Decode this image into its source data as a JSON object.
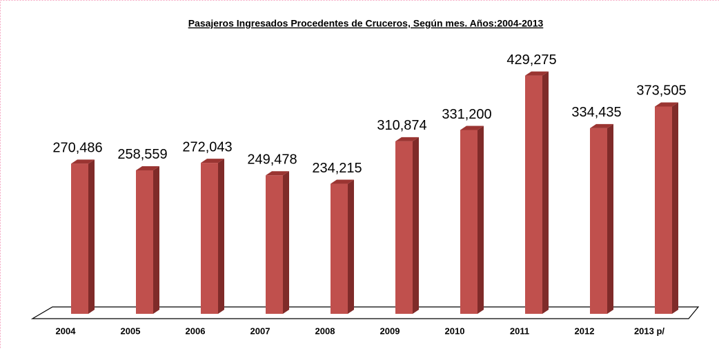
{
  "chart_data": {
    "type": "bar3d",
    "title": "Pasajeros Ingresados Procedentes de Cruceros, Según mes. Años:2004-2013",
    "categories": [
      "2004",
      "2005",
      "2006",
      "2007",
      "2008",
      "2009",
      "2010",
      "2011",
      "2012",
      "2013 p/"
    ],
    "values": [
      270486,
      258559,
      272043,
      249478,
      234215,
      310874,
      331200,
      429275,
      334435,
      373505
    ],
    "value_labels": [
      "270,486",
      "258,559",
      "272,043",
      "249,478",
      "234,215",
      "310,874",
      "331,200",
      "429,275",
      "334,435",
      "373,505"
    ],
    "color": "#c0504d"
  }
}
